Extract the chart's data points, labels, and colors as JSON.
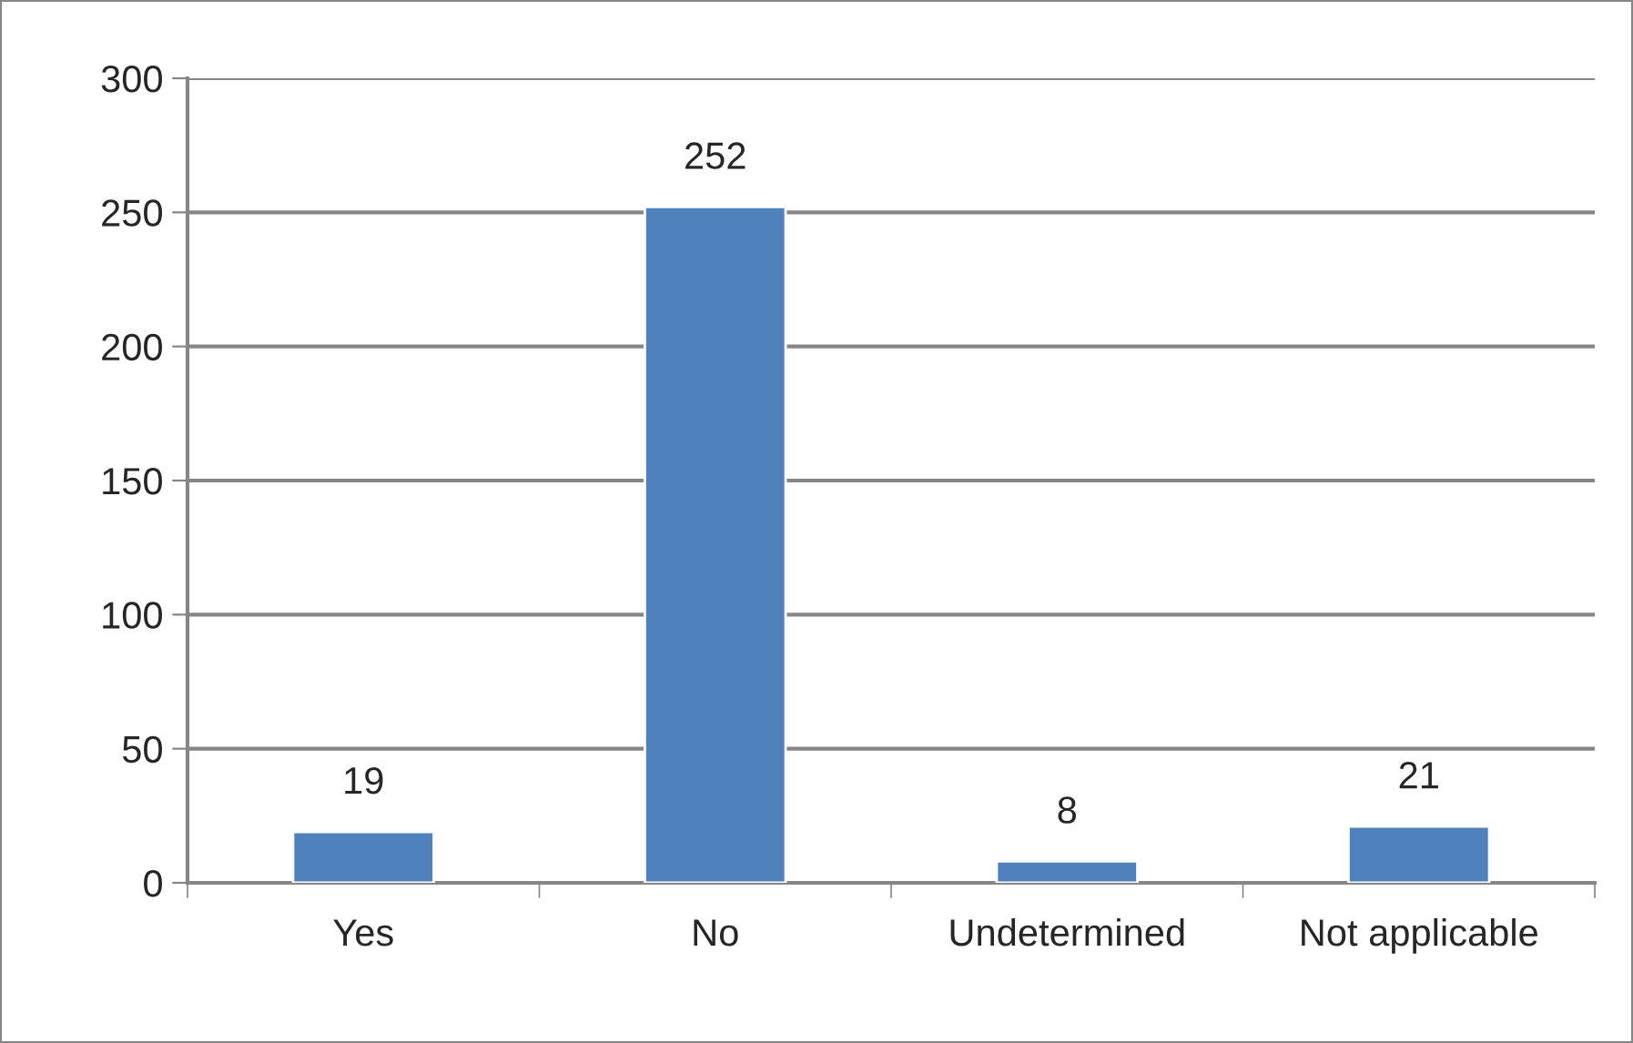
{
  "chart_data": {
    "type": "bar",
    "categories": [
      "Yes",
      "No",
      "Undetermined",
      "Not applicable"
    ],
    "values": [
      19,
      252,
      8,
      21
    ],
    "color": "#4f81bd",
    "ylim": [
      0,
      300
    ],
    "yticks": [
      0,
      50,
      100,
      150,
      200,
      250,
      300
    ],
    "grid": "y",
    "data_labels": true
  }
}
